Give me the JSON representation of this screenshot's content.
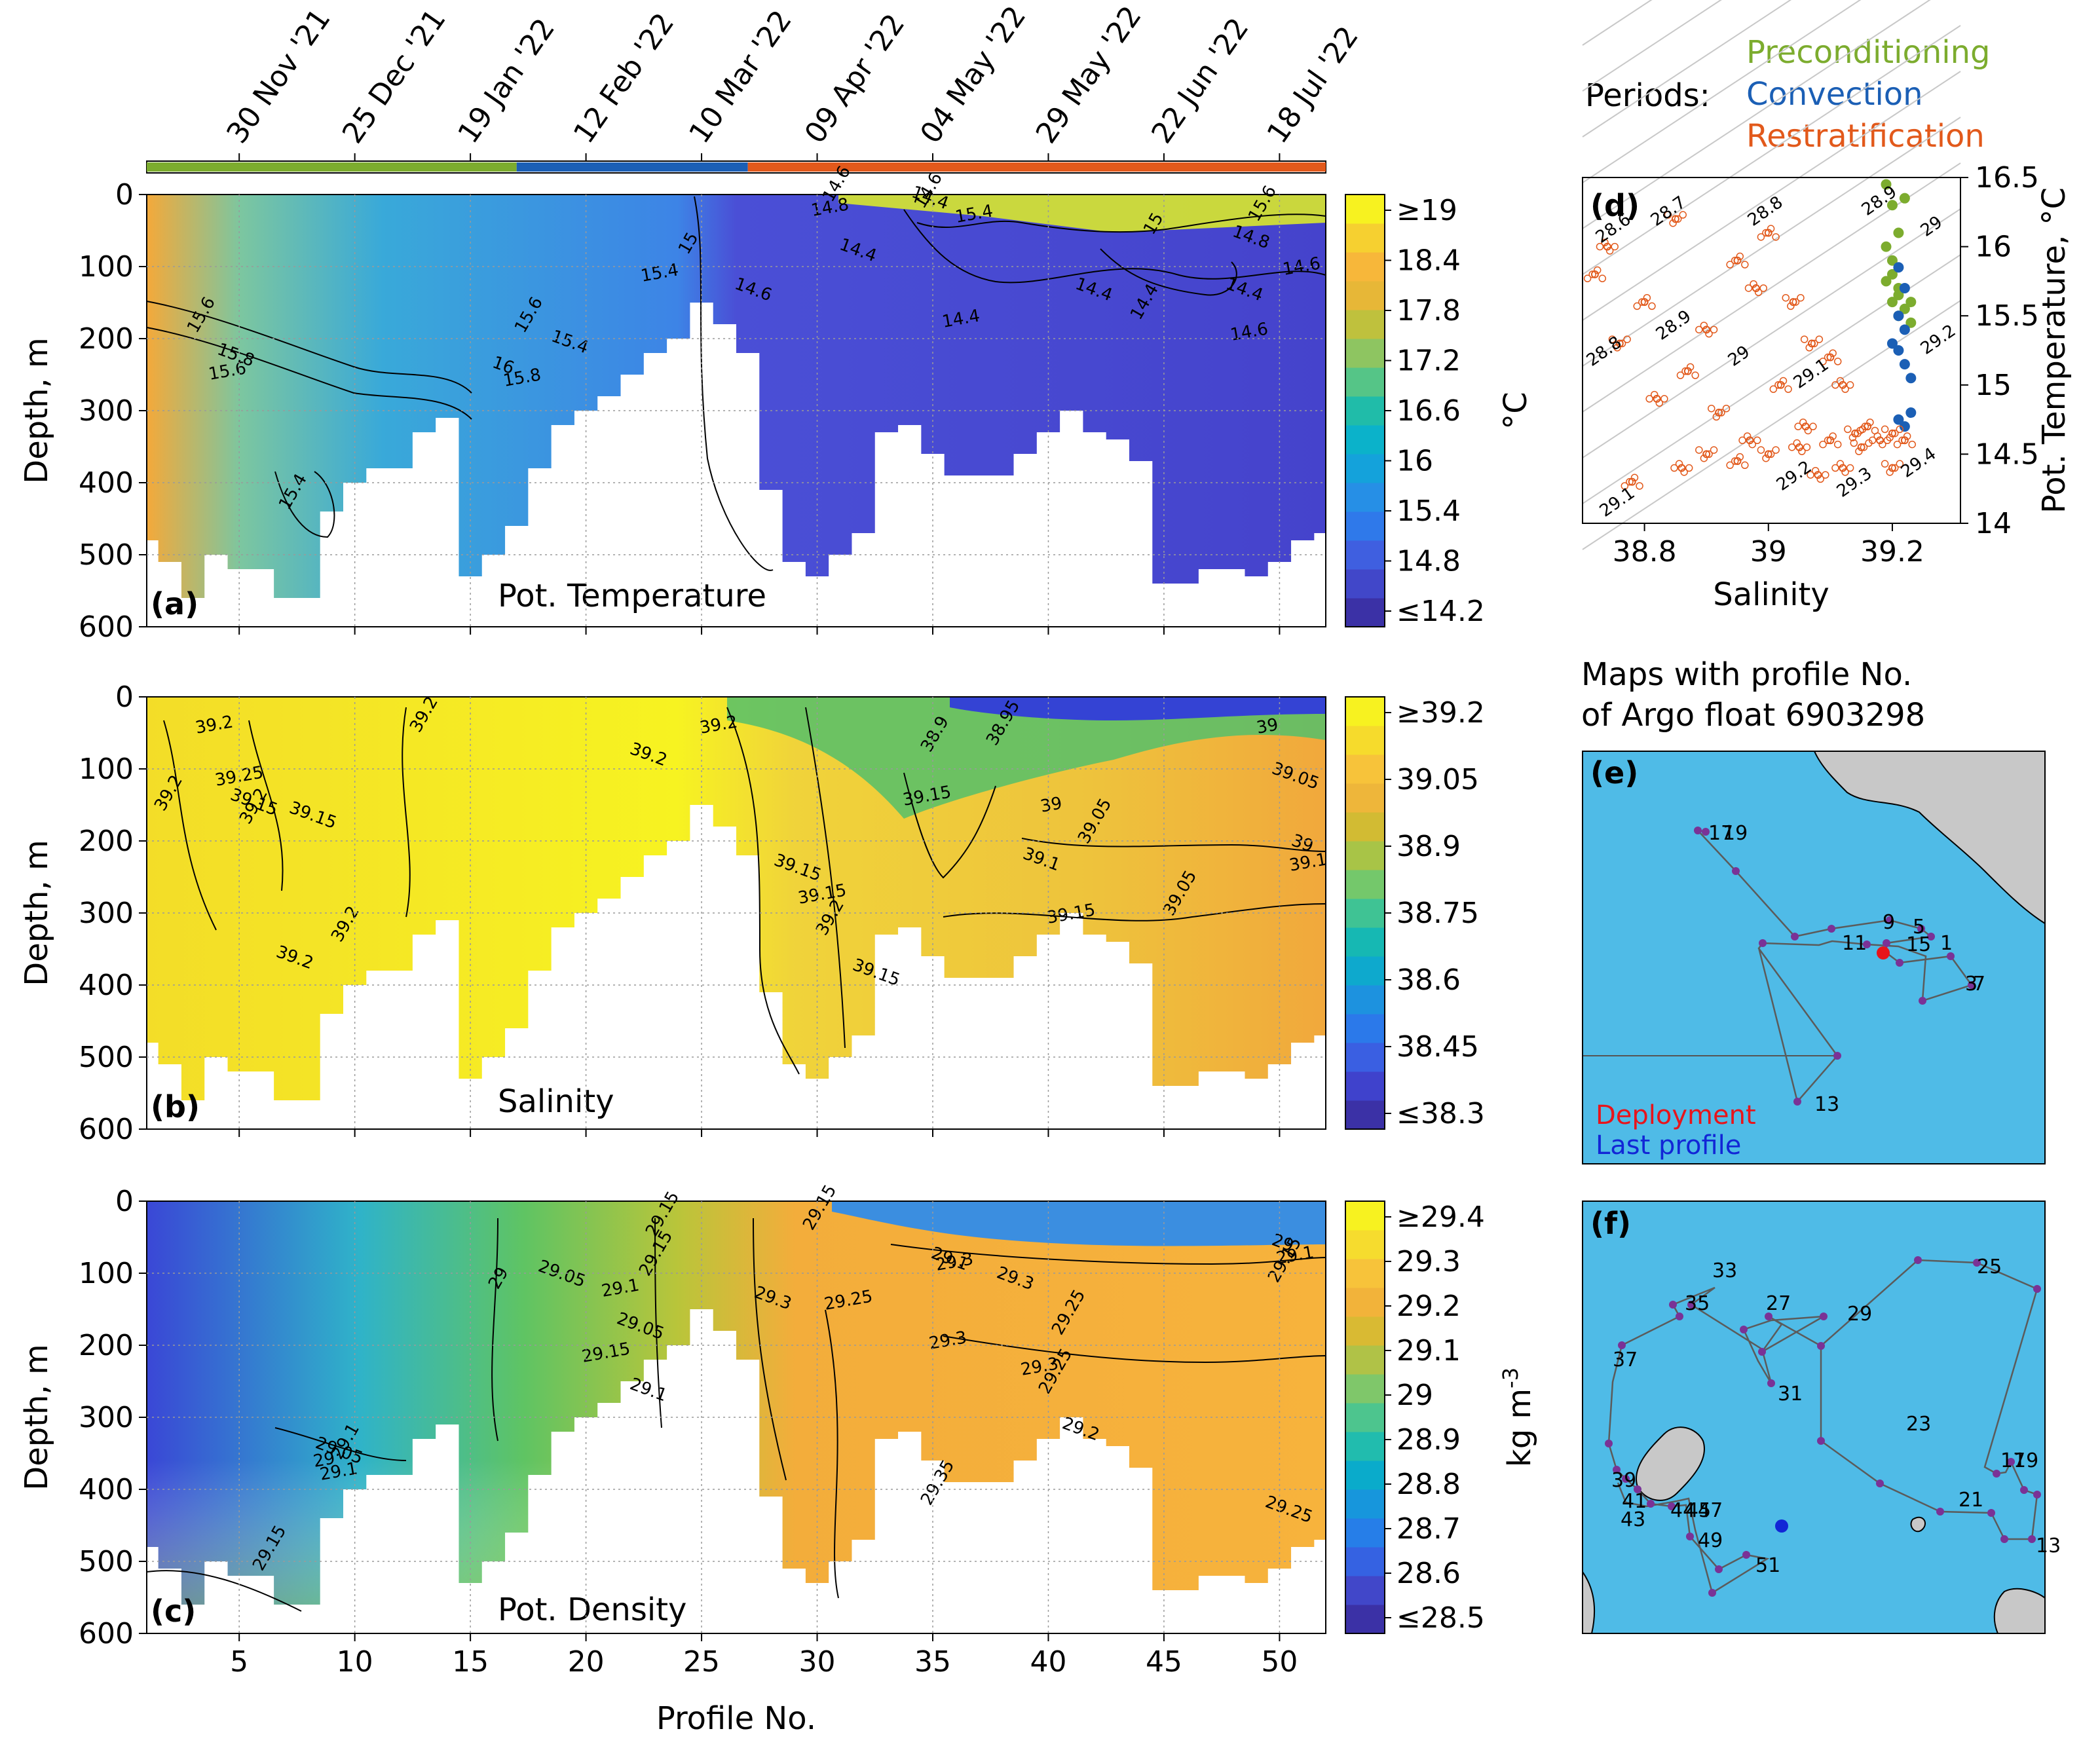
{
  "colors": {
    "preconditioning": "#7cac2e",
    "convection": "#1b5fb5",
    "restratification": "#e2591b",
    "sea": "#4fbbe7",
    "land": "#c8c8c8",
    "track": "#5b5b5b",
    "profile_dot": "#7a3296",
    "deployment": "#e8141b",
    "last_profile": "#1226d6"
  },
  "periods": {
    "label": "Periods:",
    "items": [
      {
        "name": "Preconditioning",
        "start_profile": 1,
        "end_profile": 17
      },
      {
        "name": "Convection",
        "start_profile": 17,
        "end_profile": 27
      },
      {
        "name": "Restratification",
        "start_profile": 27,
        "end_profile": 52
      }
    ]
  },
  "top_dates": [
    {
      "label": "30 Nov '21",
      "profile": 5
    },
    {
      "label": "25 Dec '21",
      "profile": 10
    },
    {
      "label": "19 Jan '22",
      "profile": 15
    },
    {
      "label": "12 Feb '22",
      "profile": 20
    },
    {
      "label": "10 Mar '22",
      "profile": 25
    },
    {
      "label": "09 Apr '22",
      "profile": 30
    },
    {
      "label": "04 May '22",
      "profile": 35
    },
    {
      "label": "29 May '22",
      "profile": 40
    },
    {
      "label": "22 Jun '22",
      "profile": 45
    },
    {
      "label": "18 Jul '22",
      "profile": 50
    }
  ],
  "chart_data": [
    {
      "id": "a",
      "panel_letter": "(a)",
      "type": "heatmap",
      "title": "Pot. Temperature",
      "xlabel": "Profile No.",
      "ylabel": "Depth, m",
      "x_range": [
        1,
        52
      ],
      "y_range": [
        0,
        600
      ],
      "x_ticks": [
        5,
        10,
        15,
        20,
        25,
        30,
        35,
        40,
        45,
        50
      ],
      "y_ticks": [
        0,
        100,
        200,
        300,
        400,
        500,
        600
      ],
      "colorbar": {
        "unit": "°C",
        "min": 14.2,
        "max": 19,
        "ticks": [
          "≥19",
          "18.4",
          "17.8",
          "17.2",
          "16.6",
          "16",
          "15.4",
          "14.8",
          "≤14.2"
        ]
      },
      "max_depth_by_profile": [
        480,
        510,
        560,
        500,
        520,
        520,
        560,
        560,
        440,
        400,
        380,
        380,
        330,
        310,
        530,
        500,
        460,
        380,
        320,
        300,
        280,
        250,
        220,
        200,
        150,
        180,
        220,
        410,
        510,
        530,
        500,
        470,
        330,
        320,
        360,
        390,
        390,
        390,
        360,
        330,
        300,
        330,
        340,
        370,
        540,
        540,
        520,
        520,
        530,
        510,
        480,
        470
      ],
      "contour_labels": [
        "15.6",
        "15.8",
        "15.6",
        "15.4",
        "16",
        "15.8",
        "15.6",
        "15.4",
        "15.4",
        "15",
        "14.6",
        "14.8",
        "14.6",
        "14.4",
        "14.4",
        "14.6",
        "14.4",
        "15.4",
        "15",
        "14.8",
        "14.6",
        "14.4",
        "14.4",
        "14.6",
        "15.6",
        "14.4"
      ]
    },
    {
      "id": "b",
      "panel_letter": "(b)",
      "type": "heatmap",
      "title": "Salinity",
      "xlabel": "Profile No.",
      "ylabel": "Depth, m",
      "x_range": [
        1,
        52
      ],
      "y_range": [
        0,
        600
      ],
      "x_ticks": [
        5,
        10,
        15,
        20,
        25,
        30,
        35,
        40,
        45,
        50
      ],
      "y_ticks": [
        0,
        100,
        200,
        300,
        400,
        500,
        600
      ],
      "colorbar": {
        "unit": "",
        "min": 38.3,
        "max": 39.2,
        "ticks": [
          "≥39.2",
          "39.05",
          "38.9",
          "38.75",
          "38.6",
          "38.45",
          "≤38.3"
        ]
      },
      "contour_labels": [
        "39.2",
        "39.15",
        "39.25",
        "39.2",
        "39.15",
        "39.2",
        "39.2",
        "39.2",
        "39.2",
        "39.2",
        "39.2",
        "39.15",
        "39.2",
        "39.15",
        "39.15",
        "38.9",
        "39.15",
        "39",
        "39.05",
        "39.1",
        "39.15",
        "39.05",
        "39",
        "39.1",
        "38.95",
        "39.05",
        "39"
      ]
    },
    {
      "id": "c",
      "panel_letter": "(c)",
      "type": "heatmap",
      "title": "Pot. Density",
      "xlabel": "Profile No.",
      "ylabel": "Depth, m",
      "x_range": [
        1,
        52
      ],
      "y_range": [
        0,
        600
      ],
      "x_ticks": [
        5,
        10,
        15,
        20,
        25,
        30,
        35,
        40,
        45,
        50
      ],
      "y_ticks": [
        0,
        100,
        200,
        300,
        400,
        500,
        600
      ],
      "colorbar": {
        "unit": "kg m-3",
        "min": 28.5,
        "max": 29.4,
        "ticks": [
          "≥29.4",
          "29.3",
          "29.2",
          "29.1",
          "29",
          "28.9",
          "28.8",
          "28.7",
          "28.6",
          "≤28.5"
        ]
      },
      "contour_labels": [
        "29",
        "29.05",
        "29.1",
        "29.15",
        "29.1",
        "29.15",
        "29.15",
        "29.05",
        "29",
        "29.1",
        "29.3",
        "29.25",
        "29.15",
        "29.1",
        "29.3",
        "29.35",
        "29.3",
        "29.3",
        "29.25",
        "29.2",
        "29.3",
        "29.25",
        "29",
        "29.1",
        "29.15",
        "29.05",
        "29.1",
        "29.15",
        "29.25"
      ]
    },
    {
      "id": "d",
      "panel_letter": "(d)",
      "type": "scatter",
      "xlabel": "Salinity",
      "ylabel": "Pot. Temperature, °C",
      "xlim": [
        38.7,
        39.31
      ],
      "ylim": [
        14.0,
        16.5
      ],
      "x_ticks": [
        "38.8",
        "39",
        "39.2"
      ],
      "x_tick_values": [
        38.8,
        39.0,
        39.2
      ],
      "y_ticks": [
        "14",
        "14.5",
        "15",
        "15.5",
        "16",
        "16.5"
      ],
      "y_tick_values": [
        14.0,
        14.5,
        15.0,
        15.5,
        16.0,
        16.5
      ],
      "isopycnal_labels": [
        "28.6",
        "28.7",
        "28.8",
        "28.9",
        "29",
        "28.8",
        "28.9",
        "29",
        "29.1",
        "29.2",
        "29.1",
        "29.2",
        "29.3",
        "29.4"
      ],
      "series": [
        {
          "name": "Preconditioning",
          "points": [
            [
              39.19,
              16.45
            ],
            [
              39.2,
              16.3
            ],
            [
              39.21,
              16.1
            ],
            [
              39.19,
              16.0
            ],
            [
              39.2,
              15.8
            ],
            [
              39.21,
              15.7
            ],
            [
              39.2,
              15.6
            ],
            [
              39.22,
              15.55
            ],
            [
              39.21,
              15.5
            ],
            [
              39.23,
              15.45
            ],
            [
              39.22,
              16.35
            ],
            [
              39.2,
              15.9
            ],
            [
              39.21,
              15.65
            ],
            [
              39.23,
              15.6
            ],
            [
              39.19,
              15.75
            ]
          ]
        },
        {
          "name": "Convection",
          "points": [
            [
              39.21,
              15.85
            ],
            [
              39.22,
              15.7
            ],
            [
              39.21,
              15.5
            ],
            [
              39.22,
              15.4
            ],
            [
              39.21,
              15.25
            ],
            [
              39.22,
              15.15
            ],
            [
              39.23,
              15.05
            ],
            [
              39.21,
              14.75
            ],
            [
              39.22,
              14.7
            ],
            [
              39.23,
              14.8
            ],
            [
              39.2,
              15.3
            ]
          ]
        },
        {
          "name": "Restratification",
          "points": [
            [
              38.72,
              15.8
            ],
            [
              38.74,
              16.0
            ],
            [
              38.76,
              15.3
            ],
            [
              38.8,
              15.6
            ],
            [
              38.82,
              14.9
            ],
            [
              38.85,
              16.2
            ],
            [
              38.87,
              15.1
            ],
            [
              38.9,
              15.4
            ],
            [
              38.92,
              14.8
            ],
            [
              38.95,
              15.9
            ],
            [
              38.97,
              14.6
            ],
            [
              39.0,
              14.5
            ],
            [
              39.02,
              15.0
            ],
            [
              39.05,
              14.55
            ],
            [
              39.07,
              15.3
            ],
            [
              39.1,
              14.6
            ],
            [
              39.12,
              14.4
            ],
            [
              39.14,
              14.65
            ],
            [
              39.16,
              14.7
            ],
            [
              39.18,
              14.6
            ],
            [
              39.2,
              14.65
            ],
            [
              39.0,
              16.1
            ],
            [
              38.98,
              15.7
            ],
            [
              39.04,
              15.6
            ],
            [
              39.1,
              15.2
            ],
            [
              39.12,
              15.0
            ],
            [
              38.9,
              14.5
            ],
            [
              38.95,
              14.45
            ],
            [
              39.08,
              14.35
            ],
            [
              39.2,
              14.4
            ],
            [
              38.78,
              14.3
            ],
            [
              38.86,
              14.4
            ],
            [
              39.15,
              14.55
            ],
            [
              39.22,
              14.6
            ],
            [
              39.06,
              14.7
            ]
          ]
        }
      ]
    },
    {
      "id": "e",
      "panel_letter": "(e)",
      "type": "map",
      "title_lines": [
        "Maps with profile No.",
        "of Argo float 6903298"
      ],
      "legend": [
        "Deployment",
        "Last profile"
      ],
      "profile_labels": [
        "17",
        "19",
        "9",
        "5",
        "11",
        "15",
        "1",
        "7",
        "3",
        "13"
      ]
    },
    {
      "id": "f",
      "panel_letter": "(f)",
      "type": "map",
      "profile_labels": [
        "33",
        "25",
        "35",
        "27",
        "29",
        "37",
        "31",
        "23",
        "17",
        "19",
        "39",
        "41",
        "43",
        "21",
        "13",
        "44",
        "45",
        "47",
        "49",
        "51"
      ]
    }
  ]
}
